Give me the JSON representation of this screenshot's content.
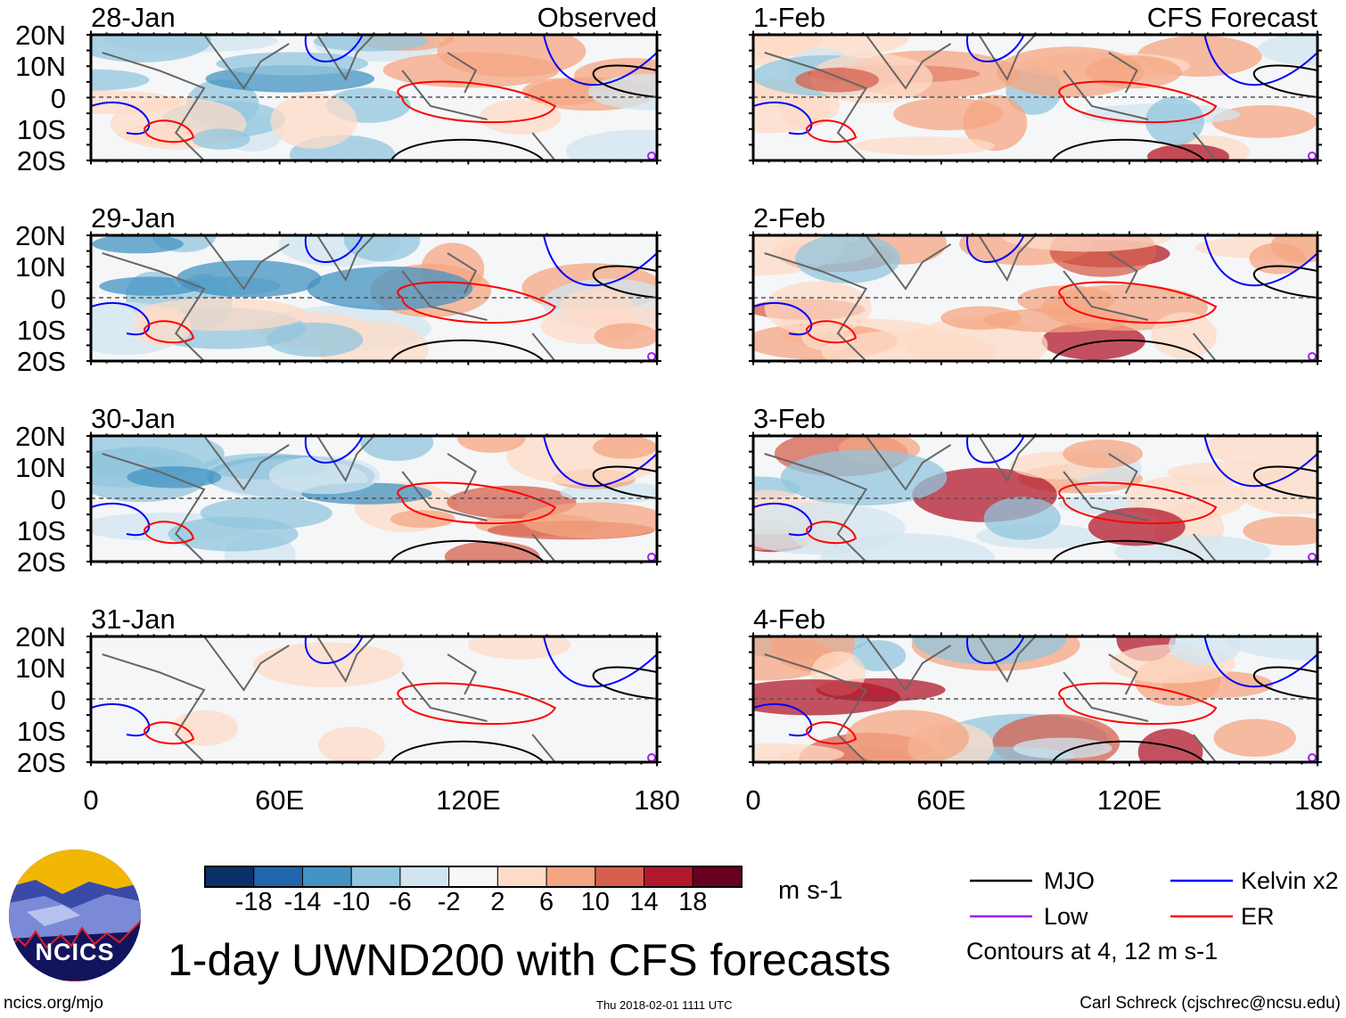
{
  "figure": {
    "title": "1-day UWND200 with CFS forecasts",
    "left_column_label": "Observed",
    "right_column_label": "CFS Forecast",
    "logo_text": "NCICS",
    "footer_left": "ncics.org/mjo",
    "footer_center": "Thu 2018-02-01 1111 UTC",
    "footer_right": "Carl Schreck (cjschrec@ncsu.edu)"
  },
  "panels": {
    "observed": [
      "28-Jan",
      "29-Jan",
      "30-Jan",
      "31-Jan"
    ],
    "forecast": [
      "1-Feb",
      "2-Feb",
      "3-Feb",
      "4-Feb"
    ]
  },
  "axes": {
    "lat_labels": [
      "20N",
      "10N",
      "0",
      "10S",
      "20S"
    ],
    "lon_labels": [
      "0",
      "60E",
      "120E",
      "180"
    ]
  },
  "colorbar": {
    "units": "m s-1",
    "labels": [
      "-18",
      "-14",
      "-10",
      "-6",
      "-2",
      "2",
      "6",
      "10",
      "14",
      "18"
    ],
    "colors": [
      "#0a3167",
      "#2166ac",
      "#4393c3",
      "#92c5de",
      "#d1e5f0",
      "#f7f7f7",
      "#fddbc7",
      "#f4a582",
      "#d6604d",
      "#b2182b",
      "#67001f"
    ]
  },
  "legend": {
    "items": [
      {
        "label": "MJO",
        "color": "#000000"
      },
      {
        "label": "Kelvin x2",
        "color": "#0000ff"
      },
      {
        "label": "Low",
        "color": "#a020f0"
      },
      {
        "label": "ER",
        "color": "#ff0000"
      }
    ],
    "note": "Contours at 4, 12 m s-1"
  }
}
